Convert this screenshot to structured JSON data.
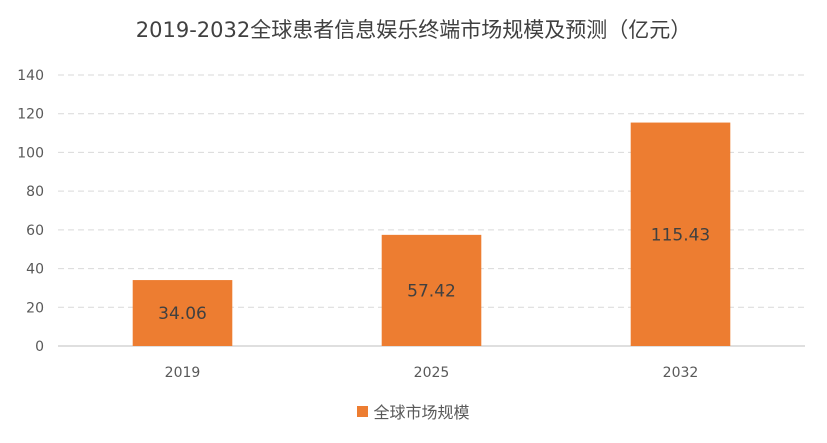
{
  "chart_data": {
    "type": "bar",
    "title": "2019-2032全球患者信息娱乐终端市场规模及预测（亿元）",
    "categories": [
      "2019",
      "2025",
      "2032"
    ],
    "series": [
      {
        "name": "全球市场规模",
        "values": [
          34.06,
          57.42,
          115.43
        ],
        "color": "#ED7D31"
      }
    ],
    "data_labels": [
      "34.06",
      "57.42",
      "115.43"
    ],
    "ylim": [
      0,
      140
    ],
    "yticks": [
      0,
      20,
      40,
      60,
      80,
      100,
      120,
      140
    ],
    "xlabel": "",
    "ylabel": "",
    "grid": true,
    "legend_position": "bottom"
  }
}
